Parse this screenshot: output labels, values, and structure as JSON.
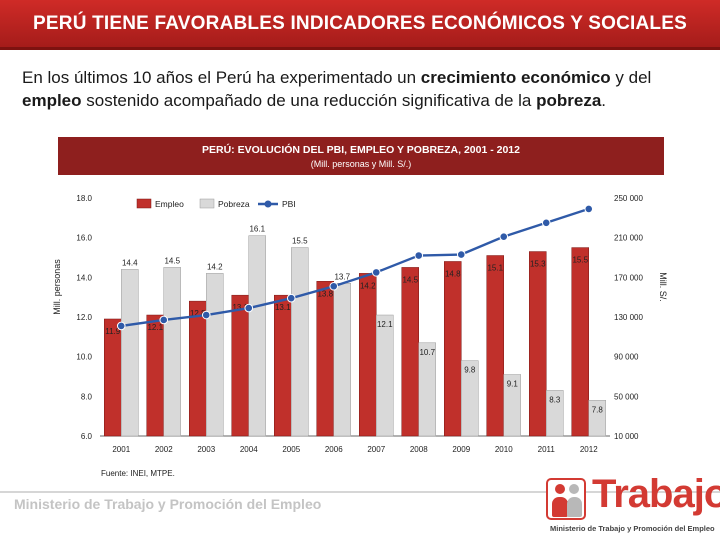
{
  "header": {
    "title": "PERÚ TIENE FAVORABLES INDICADORES ECONÓMICOS Y SOCIALES"
  },
  "intro": {
    "t1": "En los últimos 10 años el Perú ha experimentado un ",
    "b1": "crecimiento económico",
    "t2": " y del ",
    "b2": "empleo",
    "t3": " sostenido acompañado de una reducción significativa de la ",
    "b3": "pobreza",
    "t4": "."
  },
  "footer": {
    "ministry": "Ministerio de Trabajo y Promoción del Empleo",
    "logo_word": "Trabajo",
    "logo_subtitle": "Ministerio de Trabajo y Promoción del Empleo"
  },
  "colors": {
    "empleo": "#c0302b",
    "pobreza": "#d9d9d9",
    "pbi": "#2f5aa8",
    "header": "#8e1f1e"
  },
  "chart_data": {
    "type": "bar",
    "title": "PERÚ: EVOLUCIÓN DEL PBI, EMPLEO Y POBREZA, 2001 - 2012",
    "subtitle": "(Mill. personas y Mill. S/.)",
    "source": "Fuente: INEI, MTPE.",
    "ylabel": "Mill. personas",
    "y2label": "Mill. S/.",
    "ylim": [
      6.0,
      18.0
    ],
    "yticks": [
      "6.0",
      "8.0",
      "10.0",
      "12.0",
      "14.0",
      "16.0",
      "18.0"
    ],
    "y2lim": [
      10000,
      250000
    ],
    "y2ticks": [
      "10 000",
      "50 000",
      "90 000",
      "130 000",
      "170 000",
      "210 000",
      "250 000"
    ],
    "legend_position": "top",
    "categories": [
      "2001",
      "2002",
      "2003",
      "2004",
      "2005",
      "2006",
      "2007",
      "2008",
      "2009",
      "2010",
      "2011",
      "2012"
    ],
    "series": [
      {
        "name": "Empleo",
        "kind": "bar",
        "axis": "left",
        "values": [
          11.9,
          12.1,
          12.8,
          13.1,
          13.1,
          13.8,
          14.2,
          14.5,
          14.8,
          15.1,
          15.3,
          15.5
        ],
        "labels": [
          "11.9",
          "12.1",
          "12.8",
          "13.1",
          "13.1",
          "13.8",
          "14.2",
          "14.5",
          "14.8",
          "15.1",
          "15.3",
          "15.5"
        ]
      },
      {
        "name": "Pobreza",
        "kind": "bar",
        "axis": "left",
        "values": [
          14.4,
          14.5,
          14.2,
          16.1,
          15.5,
          13.7,
          12.1,
          10.7,
          9.8,
          9.1,
          8.3,
          7.8
        ],
        "labels": [
          "14.4",
          "14.5",
          "14.2",
          "16.1",
          "15.5",
          "13.7",
          "12.1",
          "10.7",
          "9.8",
          "9.1",
          "8.3",
          "7.8"
        ]
      },
      {
        "name": "PBI",
        "kind": "line",
        "axis": "right",
        "values": [
          121000,
          127000,
          132000,
          139000,
          149000,
          161000,
          175000,
          192000,
          193000,
          211000,
          225000,
          239000
        ]
      }
    ]
  }
}
